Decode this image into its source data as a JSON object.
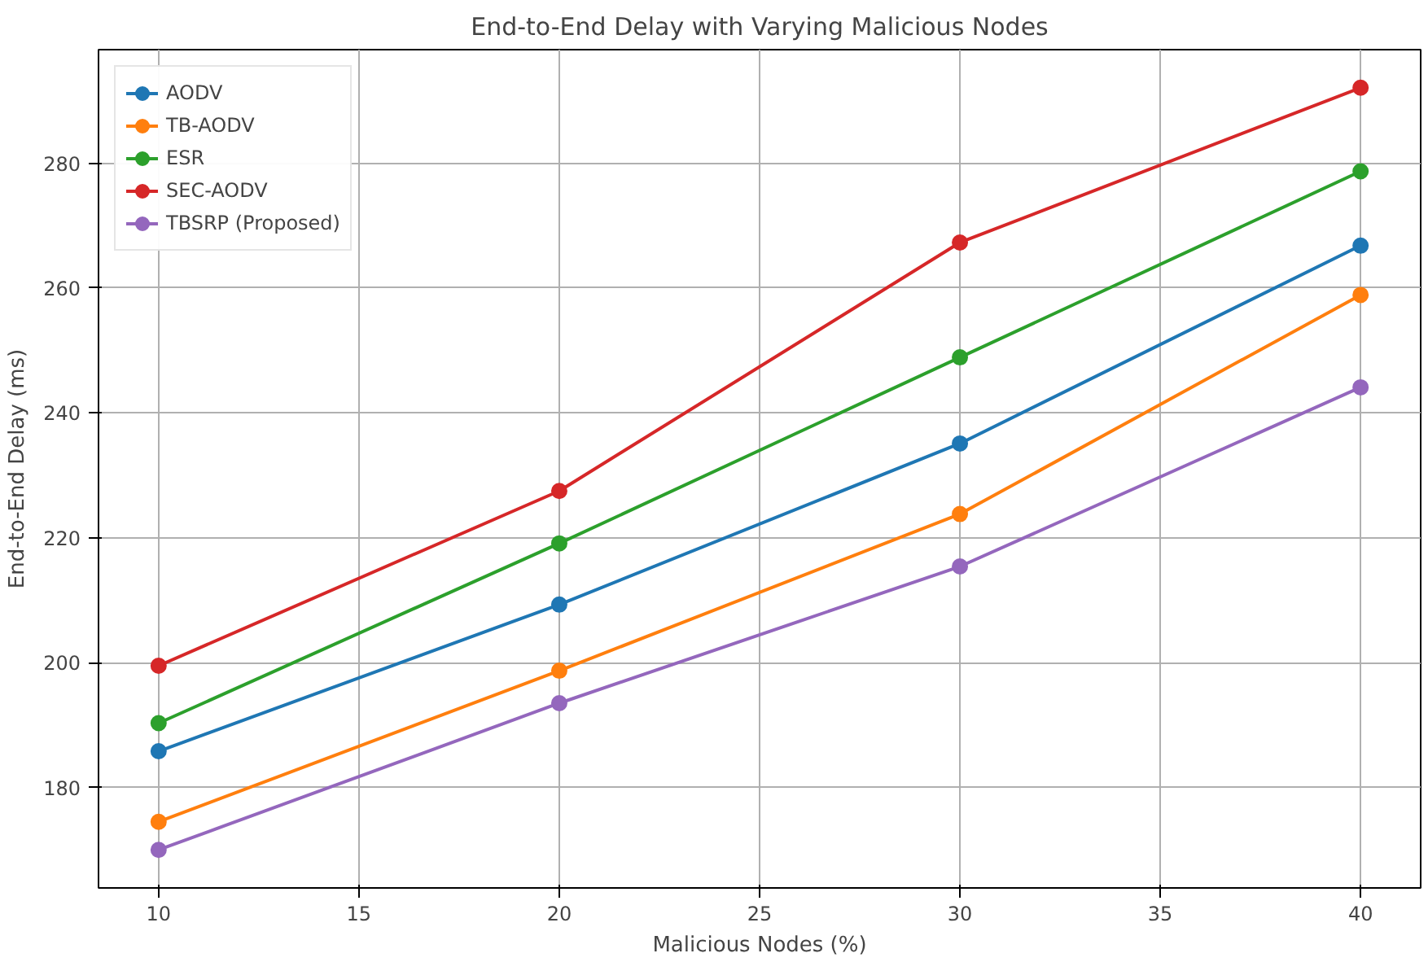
{
  "chart_data": {
    "type": "line",
    "title": "End-to-End Delay with Varying Malicious Nodes",
    "xlabel": "Malicious Nodes (%)",
    "ylabel": "End-to-End Delay (ms)",
    "x": [
      10,
      20,
      30,
      40
    ],
    "series": [
      {
        "name": "AODV",
        "color": "#1f77b4",
        "values": [
          185.8,
          209.3,
          235.1,
          266.8
        ]
      },
      {
        "name": "TB-AODV",
        "color": "#ff7f0e",
        "values": [
          174.5,
          198.7,
          223.8,
          258.9
        ]
      },
      {
        "name": "ESR",
        "color": "#2ca02c",
        "values": [
          190.3,
          219.1,
          248.9,
          278.7
        ]
      },
      {
        "name": "SEC-AODV",
        "color": "#d62728",
        "values": [
          199.5,
          227.5,
          267.3,
          292.1
        ]
      },
      {
        "name": "TBSRP (Proposed)",
        "color": "#9467bd",
        "values": [
          170.0,
          193.5,
          215.4,
          244.1
        ]
      }
    ],
    "xlim": [
      8.5,
      41.5
    ],
    "ylim": [
      163.9,
      298.2
    ],
    "xticks": [
      10,
      15,
      20,
      25,
      30,
      35,
      40
    ],
    "yticks": [
      180,
      200,
      220,
      240,
      260,
      280
    ],
    "grid": true,
    "legend": "top left",
    "marker": "circle",
    "line_style": "solid"
  }
}
